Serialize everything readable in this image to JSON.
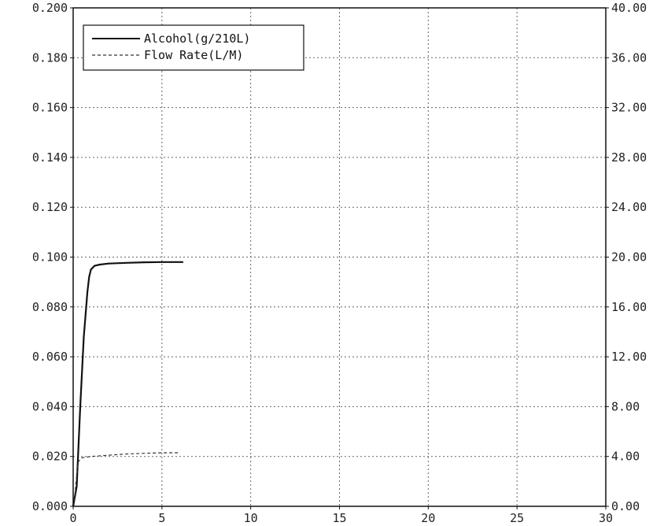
{
  "chart_data": {
    "type": "line",
    "title": "",
    "xlabel": "",
    "ylabel": "",
    "y2label": "",
    "xlim": [
      0,
      30
    ],
    "ylim": [
      0,
      0.2
    ],
    "y2lim": [
      0,
      40
    ],
    "x_ticks": [
      "0",
      "5",
      "10",
      "15",
      "20",
      "25",
      "30"
    ],
    "y_ticks": [
      "0.000",
      "0.020",
      "0.040",
      "0.060",
      "0.080",
      "0.100",
      "0.120",
      "0.140",
      "0.160",
      "0.180",
      "0.200"
    ],
    "y2_ticks": [
      "0.00",
      "4.00",
      "8.00",
      "12.00",
      "16.00",
      "20.00",
      "24.00",
      "28.00",
      "32.00",
      "36.00",
      "40.00"
    ],
    "grid": true,
    "legend_position": "top-left",
    "series": [
      {
        "name": "Alcohol(g/210L)",
        "axis": "left",
        "style": "solid",
        "color": "#111111",
        "x": [
          0,
          0.2,
          0.4,
          0.6,
          0.8,
          0.9,
          1.0,
          1.2,
          1.5,
          2.0,
          3.0,
          4.0,
          5.0,
          6.2
        ],
        "y": [
          0,
          0.008,
          0.04,
          0.068,
          0.086,
          0.092,
          0.095,
          0.0965,
          0.097,
          0.0974,
          0.0977,
          0.0979,
          0.098,
          0.098
        ]
      },
      {
        "name": "Flow Rate(L/M)",
        "axis": "right",
        "style": "dashed",
        "color": "#333333",
        "x": [
          0,
          0.1,
          0.2,
          0.3,
          0.5,
          1.0,
          2.0,
          3.0,
          4.0,
          5.0,
          6.0
        ],
        "y": [
          0,
          1.0,
          2.5,
          3.6,
          3.9,
          4.0,
          4.1,
          4.2,
          4.25,
          4.3,
          4.3
        ]
      }
    ]
  }
}
